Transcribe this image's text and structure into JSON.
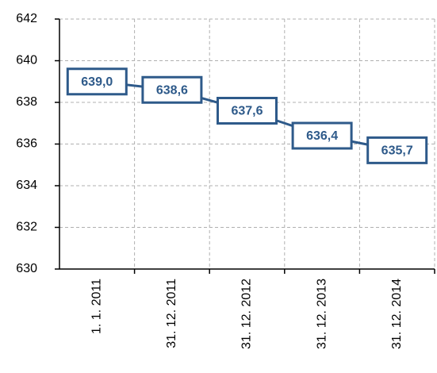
{
  "chart_data": {
    "type": "line",
    "categories": [
      "1. 1. 2011",
      "31. 12. 2011",
      "31. 12. 2012",
      "31. 12. 2013",
      "31. 12. 2014"
    ],
    "values": [
      639.0,
      638.6,
      637.6,
      636.4,
      635.7
    ],
    "value_labels": [
      "639,0",
      "638,6",
      "637,6",
      "636,4",
      "635,7"
    ],
    "color": "#2e5a8a",
    "ylim": [
      630,
      642
    ],
    "yticks": [
      630,
      632,
      634,
      636,
      638,
      640,
      642
    ],
    "grid": true
  }
}
